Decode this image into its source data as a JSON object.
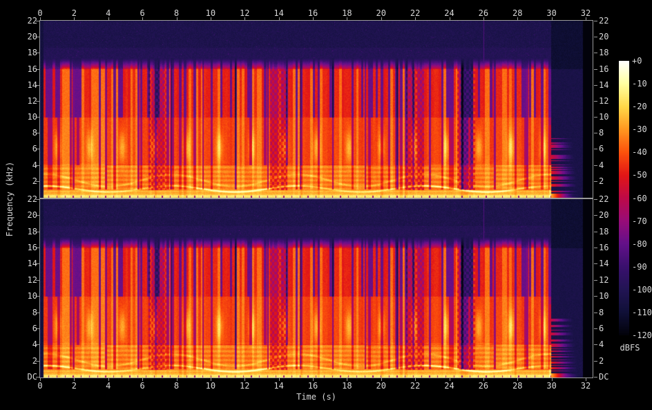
{
  "window": {
    "background": "#000000",
    "text_color": "#d8d8d8",
    "frame_color": "#9a9a9a"
  },
  "chart_data": {
    "type": "heatmap",
    "subtype": "stereo_spectrogram",
    "title": "",
    "xlabel": "Time (s)",
    "ylabel": "Frequency (kHz)",
    "panel_count": 2,
    "x_axis": {
      "min_s": 0,
      "max_s": 32.4,
      "tick_step_s": 2,
      "tick_labels": [
        "0",
        "2",
        "4",
        "6",
        "8",
        "10",
        "12",
        "14",
        "16",
        "18",
        "20",
        "22",
        "24",
        "26",
        "28",
        "30",
        "32"
      ]
    },
    "y_axis": {
      "min_khz": 0,
      "max_khz": 22,
      "tick_step_khz": 2,
      "panel1_tick_labels": [
        "22",
        "20",
        "18",
        "16",
        "14",
        "12",
        "10",
        "8",
        "6",
        "4",
        "2"
      ],
      "panel2_tick_labels": [
        "22",
        "20",
        "18",
        "16",
        "14",
        "12",
        "10",
        "8",
        "6",
        "4",
        "2",
        "DC"
      ],
      "dc_label": "DC"
    },
    "colorbar": {
      "label": "dBFS",
      "min_db": -120,
      "max_db": 0,
      "tick_labels": [
        "+0",
        "-10",
        "-20",
        "-30",
        "-40",
        "-50",
        "-60",
        "-70",
        "-80",
        "-90",
        "-100",
        "-110",
        "-120"
      ],
      "palette_stops": [
        [
          0,
          "#ffffff"
        ],
        [
          -10,
          "#ffffa0"
        ],
        [
          -20,
          "#ffd848"
        ],
        [
          -30,
          "#ff9620"
        ],
        [
          -40,
          "#fc520c"
        ],
        [
          -50,
          "#e21616"
        ],
        [
          -60,
          "#be0a48"
        ],
        [
          -70,
          "#980c78"
        ],
        [
          -80,
          "#64108a"
        ],
        [
          -90,
          "#3a106e"
        ],
        [
          -100,
          "#221454"
        ],
        [
          -110,
          "#101038"
        ],
        [
          -120,
          "#02020a"
        ]
      ]
    },
    "content": {
      "silence_head_s": 0.2,
      "music_end_s": 29.95,
      "tail_end_s": 31.8,
      "lossy_cutoff_khz": 16,
      "noise_floor_db": -106,
      "beat_interval_s": 0.1425,
      "bar_interval_s": 1.9,
      "kick_interval_s": 0.475,
      "snare_center_khz": 6.2,
      "melody_base_khz": 1.05,
      "breaks_s": [
        6.35,
        13.45,
        21.45,
        24.45
      ],
      "cursor_time_s": 26.0
    }
  }
}
